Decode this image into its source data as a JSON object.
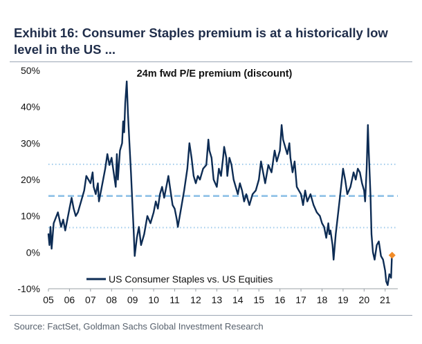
{
  "page": {
    "title": "Exhibit 16: Consumer Staples premium is at a historically low level in the US ...",
    "source": "Source: FactSet, Goldman Sachs Global Investment Research"
  },
  "chart_data": {
    "type": "line",
    "title": "24m fwd P/E premium (discount)",
    "xlabel": "",
    "ylabel": "",
    "ylim": [
      -10,
      50
    ],
    "xlim": [
      2005,
      2021.6
    ],
    "y_ticks": [
      -10,
      0,
      10,
      20,
      30,
      40,
      50
    ],
    "y_tick_labels": [
      "-10%",
      "0%",
      "10%",
      "20%",
      "30%",
      "40%",
      "50%"
    ],
    "x_ticks": [
      2005,
      2006,
      2007,
      2008,
      2009,
      2010,
      2011,
      2012,
      2013,
      2014,
      2015,
      2016,
      2017,
      2018,
      2019,
      2020,
      2021
    ],
    "x_tick_labels": [
      "05",
      "06",
      "07",
      "08",
      "09",
      "10",
      "11",
      "12",
      "13",
      "14",
      "15",
      "16",
      "17",
      "18",
      "19",
      "20",
      "21"
    ],
    "reference_lines": [
      {
        "name": "mean",
        "value": 15.5,
        "style": "dashed"
      },
      {
        "name": "plus-1-sd",
        "value": 24.2,
        "style": "dotted"
      },
      {
        "name": "minus-1-sd",
        "value": 6.8,
        "style": "dotted"
      }
    ],
    "legend": {
      "position": "bottom-left"
    },
    "series": [
      {
        "name": "US Consumer Staples vs. US Equities",
        "color": "#0d2c54",
        "points": [
          [
            2005.0,
            5
          ],
          [
            2005.05,
            2
          ],
          [
            2005.1,
            7
          ],
          [
            2005.15,
            1
          ],
          [
            2005.25,
            8
          ],
          [
            2005.45,
            11
          ],
          [
            2005.6,
            7
          ],
          [
            2005.7,
            9
          ],
          [
            2005.8,
            6
          ],
          [
            2006.0,
            12
          ],
          [
            2006.1,
            15
          ],
          [
            2006.2,
            12
          ],
          [
            2006.3,
            10
          ],
          [
            2006.4,
            11
          ],
          [
            2006.55,
            14
          ],
          [
            2006.7,
            17
          ],
          [
            2006.8,
            21
          ],
          [
            2006.9,
            20
          ],
          [
            2007.0,
            19
          ],
          [
            2007.1,
            22
          ],
          [
            2007.15,
            18
          ],
          [
            2007.25,
            16
          ],
          [
            2007.35,
            19
          ],
          [
            2007.4,
            14
          ],
          [
            2007.5,
            17
          ],
          [
            2007.6,
            20
          ],
          [
            2007.7,
            23
          ],
          [
            2007.8,
            27
          ],
          [
            2007.9,
            24
          ],
          [
            2008.0,
            26
          ],
          [
            2008.1,
            22
          ],
          [
            2008.2,
            18
          ],
          [
            2008.25,
            27
          ],
          [
            2008.3,
            20
          ],
          [
            2008.4,
            28
          ],
          [
            2008.5,
            30
          ],
          [
            2008.55,
            36
          ],
          [
            2008.6,
            33
          ],
          [
            2008.65,
            41
          ],
          [
            2008.72,
            47
          ],
          [
            2008.78,
            38
          ],
          [
            2008.85,
            30
          ],
          [
            2008.92,
            22
          ],
          [
            2009.0,
            12
          ],
          [
            2009.05,
            6
          ],
          [
            2009.1,
            -1
          ],
          [
            2009.2,
            4
          ],
          [
            2009.3,
            7
          ],
          [
            2009.4,
            2
          ],
          [
            2009.55,
            5
          ],
          [
            2009.7,
            10
          ],
          [
            2009.85,
            8
          ],
          [
            2010.0,
            11
          ],
          [
            2010.1,
            14
          ],
          [
            2010.2,
            12
          ],
          [
            2010.3,
            16
          ],
          [
            2010.4,
            18
          ],
          [
            2010.5,
            15
          ],
          [
            2010.6,
            18
          ],
          [
            2010.7,
            21
          ],
          [
            2010.8,
            17
          ],
          [
            2010.9,
            13
          ],
          [
            2011.0,
            12
          ],
          [
            2011.1,
            9
          ],
          [
            2011.15,
            7
          ],
          [
            2011.3,
            12
          ],
          [
            2011.45,
            17
          ],
          [
            2011.6,
            23
          ],
          [
            2011.7,
            30
          ],
          [
            2011.8,
            26
          ],
          [
            2011.9,
            21
          ],
          [
            2012.0,
            19
          ],
          [
            2012.1,
            21
          ],
          [
            2012.2,
            20
          ],
          [
            2012.35,
            23
          ],
          [
            2012.5,
            24
          ],
          [
            2012.6,
            31
          ],
          [
            2012.65,
            28
          ],
          [
            2012.75,
            26
          ],
          [
            2012.85,
            20
          ],
          [
            2013.0,
            18
          ],
          [
            2013.1,
            23
          ],
          [
            2013.2,
            21
          ],
          [
            2013.3,
            26
          ],
          [
            2013.35,
            29
          ],
          [
            2013.45,
            26
          ],
          [
            2013.5,
            21
          ],
          [
            2013.6,
            26
          ],
          [
            2013.7,
            24
          ],
          [
            2013.8,
            20
          ],
          [
            2014.0,
            16
          ],
          [
            2014.1,
            19
          ],
          [
            2014.2,
            17
          ],
          [
            2014.3,
            14
          ],
          [
            2014.4,
            16
          ],
          [
            2014.55,
            13
          ],
          [
            2014.7,
            16
          ],
          [
            2014.85,
            17
          ],
          [
            2015.0,
            20
          ],
          [
            2015.1,
            25
          ],
          [
            2015.2,
            22
          ],
          [
            2015.3,
            19
          ],
          [
            2015.45,
            24
          ],
          [
            2015.6,
            22
          ],
          [
            2015.75,
            28
          ],
          [
            2015.85,
            25
          ],
          [
            2016.0,
            28
          ],
          [
            2016.08,
            35
          ],
          [
            2016.15,
            31
          ],
          [
            2016.25,
            29
          ],
          [
            2016.35,
            27
          ],
          [
            2016.45,
            30
          ],
          [
            2016.5,
            26
          ],
          [
            2016.6,
            22
          ],
          [
            2016.7,
            25
          ],
          [
            2016.8,
            18
          ],
          [
            2016.9,
            17
          ],
          [
            2017.0,
            16
          ],
          [
            2017.1,
            13
          ],
          [
            2017.2,
            17
          ],
          [
            2017.3,
            14
          ],
          [
            2017.45,
            16
          ],
          [
            2017.6,
            13
          ],
          [
            2017.75,
            11
          ],
          [
            2017.9,
            10
          ],
          [
            2018.0,
            8
          ],
          [
            2018.1,
            7
          ],
          [
            2018.2,
            4
          ],
          [
            2018.3,
            8
          ],
          [
            2018.35,
            5
          ],
          [
            2018.4,
            6
          ],
          [
            2018.5,
            2
          ],
          [
            2018.55,
            -2
          ],
          [
            2018.65,
            5
          ],
          [
            2018.75,
            10
          ],
          [
            2018.85,
            15
          ],
          [
            2019.0,
            23
          ],
          [
            2019.1,
            20
          ],
          [
            2019.2,
            16
          ],
          [
            2019.35,
            18
          ],
          [
            2019.5,
            22
          ],
          [
            2019.6,
            20
          ],
          [
            2019.7,
            23
          ],
          [
            2019.8,
            22
          ],
          [
            2019.9,
            19
          ],
          [
            2020.0,
            17
          ],
          [
            2020.05,
            14
          ],
          [
            2020.12,
            23
          ],
          [
            2020.18,
            35
          ],
          [
            2020.22,
            28
          ],
          [
            2020.3,
            16
          ],
          [
            2020.35,
            5
          ],
          [
            2020.42,
            0
          ],
          [
            2020.5,
            -2
          ],
          [
            2020.6,
            2
          ],
          [
            2020.7,
            3
          ],
          [
            2020.8,
            -1
          ],
          [
            2020.9,
            -2
          ],
          [
            2021.0,
            -5
          ],
          [
            2021.05,
            -8
          ],
          [
            2021.12,
            -9
          ],
          [
            2021.2,
            -6
          ],
          [
            2021.28,
            -7
          ],
          [
            2021.32,
            -1
          ]
        ],
        "last_point": [
          2021.33,
          -0.8
        ],
        "last_point_color": "#f28c28"
      }
    ]
  }
}
